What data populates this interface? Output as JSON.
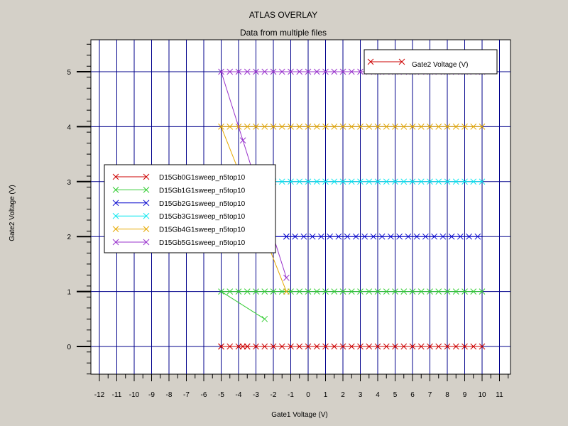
{
  "chart_data": {
    "type": "line",
    "title": "ATLAS OVERLAY",
    "subtitle": "Data from multiple files",
    "xlabel": "Gate1 Voltage (V)",
    "ylabel": "Gate2 Voltage (V)",
    "xlim": [
      -12.5,
      11.6
    ],
    "ylim": [
      -0.5,
      5.5
    ],
    "xticks": [
      -12,
      -11,
      -10,
      -9,
      -8,
      -7,
      -6,
      -5,
      -4,
      -3,
      -2,
      -1,
      0,
      1,
      2,
      3,
      4,
      5,
      6,
      7,
      8,
      9,
      10,
      11
    ],
    "yticks": [
      0,
      1,
      2,
      3,
      4,
      5
    ],
    "grid": true,
    "colors": {
      "background": "#d4d0c8",
      "plot_background": "#ffffff",
      "grid": "#00008b"
    },
    "legend_top_right": {
      "entries": [
        {
          "name": "Gate2 Voltage (V)",
          "color": "#cc0000"
        }
      ]
    },
    "legend": {
      "placement": "center-left",
      "entries": [
        {
          "name": "D15Gb0G1sweep_n5top10",
          "color": "#cc0000"
        },
        {
          "name": "D15Gb1G1sweep_n5top10",
          "color": "#33cc33"
        },
        {
          "name": "D15Gb2G1sweep_n5top10",
          "color": "#0000cc"
        },
        {
          "name": "D15Gb3G1sweep_n5top10",
          "color": "#00e5ee"
        },
        {
          "name": "D15Gb4G1sweep_n5top10",
          "color": "#e6a800"
        },
        {
          "name": "D15Gb5G1sweep_n5top10",
          "color": "#9933cc"
        }
      ]
    },
    "series": [
      {
        "name": "D15Gb0G1sweep_n5top10",
        "color": "#cc0000",
        "start": [
          -5,
          0
        ],
        "points_const": 0,
        "step": 0.5,
        "x_from": -5,
        "x_to": 10,
        "extra": [
          [
            -3.75,
            0
          ],
          [
            -3.5,
            0
          ]
        ]
      },
      {
        "name": "D15Gb1G1sweep_n5top10",
        "color": "#33cc33",
        "start": [
          -2.5,
          0.5
        ],
        "points_const": 1,
        "step": 0.5,
        "x_from": -5,
        "x_to": 10,
        "extra": []
      },
      {
        "name": "D15Gb2G1sweep_n5top10",
        "color": "#0000cc",
        "start": [
          -1.25,
          2.0
        ],
        "points_const": 2,
        "step": 0.5,
        "x_from": -1.25,
        "x_to": 10,
        "extra": []
      },
      {
        "name": "D15Gb3G1sweep_n5top10",
        "color": "#00e5ee",
        "start": [
          -2.5,
          3.0
        ],
        "points_const": 3,
        "step": 0.5,
        "x_from": -2.5,
        "x_to": 10,
        "extra": []
      },
      {
        "name": "D15Gb4G1sweep_n5top10",
        "color": "#e6a800",
        "start": [
          -1.25,
          1.0
        ],
        "points_const": 4,
        "step": 0.5,
        "x_from": -5,
        "x_to": 10,
        "extra": []
      },
      {
        "name": "D15Gb5G1sweep_n5top10",
        "color": "#9933cc",
        "start": [
          -1.25,
          1.25
        ],
        "points_const": 5,
        "step": 0.5,
        "x_from": -5,
        "x_to": 10,
        "extra": [
          [
            -3.75,
            3.75
          ]
        ]
      }
    ]
  }
}
